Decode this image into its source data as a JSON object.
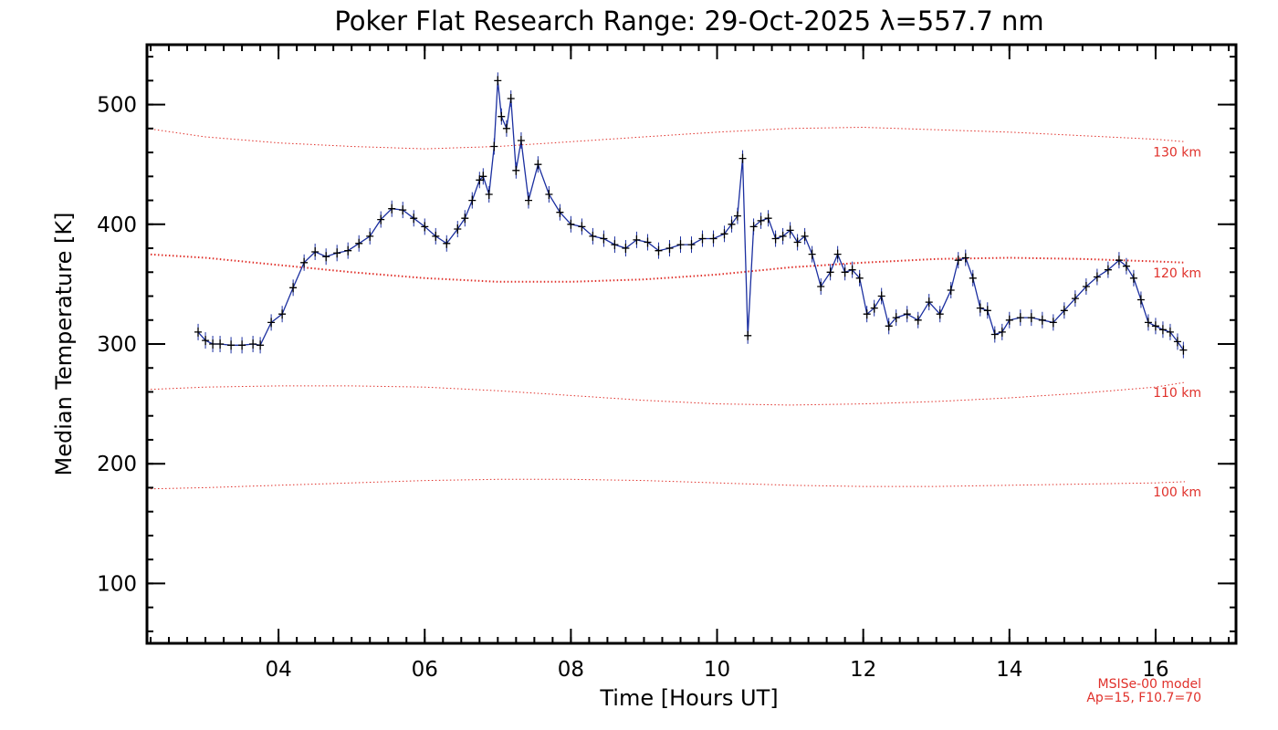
{
  "colors": {
    "series_line": "#1b2fa0",
    "series_points": "#000000",
    "reference_lines": "#e0302a"
  },
  "chart_data": {
    "type": "line",
    "title": "Poker Flat Research Range: 29-Oct-2025 λ=557.7 nm",
    "xlabel": "Time [Hours UT]",
    "ylabel": "Median Temperature [K]",
    "xlim": [
      2.2,
      17.1
    ],
    "ylim": [
      50,
      550
    ],
    "x_ticks": [
      4,
      6,
      8,
      10,
      12,
      14,
      16
    ],
    "x_tick_labels": [
      "04",
      "06",
      "08",
      "10",
      "12",
      "14",
      "16"
    ],
    "y_ticks": [
      100,
      200,
      300,
      400,
      500
    ],
    "y_tick_labels": [
      "100",
      "200",
      "300",
      "400",
      "500"
    ],
    "grid": false,
    "series": [
      {
        "x": [
          2.9,
          3.0,
          3.1,
          3.2,
          3.35,
          3.5,
          3.65,
          3.75,
          3.9,
          4.05,
          4.2,
          4.35,
          4.5,
          4.65,
          4.8,
          4.95,
          5.1,
          5.25,
          5.4,
          5.55,
          5.7,
          5.85,
          6.0,
          6.15,
          6.3,
          6.45,
          6.55,
          6.65,
          6.75,
          6.8,
          6.88,
          6.95,
          7.0,
          7.05,
          7.12,
          7.18,
          7.25,
          7.32,
          7.42,
          7.55,
          7.7,
          7.85,
          8.0,
          8.15,
          8.3,
          8.45,
          8.6,
          8.75,
          8.9,
          9.05,
          9.2,
          9.35,
          9.5,
          9.65,
          9.8,
          9.95,
          10.1,
          10.2,
          10.28,
          10.35,
          10.42,
          10.5,
          10.6,
          10.7,
          10.8,
          10.9,
          11.0,
          11.1,
          11.2,
          11.3,
          11.42,
          11.55,
          11.65,
          11.75,
          11.85,
          11.95,
          12.05,
          12.15,
          12.25,
          12.35,
          12.45,
          12.6,
          12.75,
          12.9,
          13.05,
          13.2,
          13.3,
          13.4,
          13.5,
          13.6,
          13.7,
          13.8,
          13.9,
          14.0,
          14.15,
          14.3,
          14.45,
          14.6,
          14.75,
          14.9,
          15.05,
          15.2,
          15.35,
          15.5,
          15.6,
          15.7,
          15.8,
          15.9,
          16.0,
          16.1,
          16.2,
          16.3,
          16.38
        ],
        "values": [
          310,
          303,
          300,
          300,
          299,
          299,
          300,
          299,
          318,
          325,
          347,
          368,
          377,
          373,
          376,
          378,
          384,
          390,
          404,
          413,
          412,
          405,
          398,
          390,
          384,
          396,
          405,
          420,
          437,
          440,
          425,
          465,
          520,
          490,
          480,
          505,
          445,
          470,
          420,
          450,
          425,
          410,
          400,
          398,
          390,
          388,
          383,
          380,
          387,
          385,
          378,
          380,
          383,
          383,
          388,
          388,
          392,
          400,
          407,
          455,
          307,
          398,
          403,
          405,
          388,
          390,
          395,
          385,
          390,
          375,
          348,
          360,
          375,
          360,
          362,
          355,
          325,
          330,
          340,
          315,
          322,
          325,
          320,
          335,
          325,
          345,
          370,
          372,
          355,
          330,
          328,
          308,
          310,
          320,
          322,
          322,
          320,
          318,
          328,
          338,
          348,
          356,
          362,
          370,
          365,
          355,
          337,
          318,
          315,
          312,
          310,
          302,
          295
        ]
      }
    ],
    "reference_lines": [
      {
        "label": "130 km",
        "x": [
          2.2,
          3.0,
          4.0,
          5.0,
          6.0,
          7.0,
          8.0,
          9.0,
          10.0,
          11.0,
          12.0,
          13.0,
          14.0,
          15.0,
          16.0,
          16.4
        ],
        "values": [
          480,
          473,
          468,
          465,
          463,
          465,
          469,
          473,
          477,
          480,
          481,
          479,
          477,
          474,
          471,
          469
        ]
      },
      {
        "label": "120 km",
        "x": [
          2.2,
          3.0,
          4.0,
          5.0,
          6.0,
          7.0,
          8.0,
          9.0,
          10.0,
          11.0,
          12.0,
          13.0,
          14.0,
          15.0,
          16.0,
          16.4
        ],
        "values": [
          375,
          372,
          366,
          360,
          355,
          352,
          352,
          354,
          358,
          364,
          368,
          371,
          372,
          371,
          369,
          368
        ]
      },
      {
        "label": "110 km",
        "x": [
          2.2,
          3.0,
          4.0,
          5.0,
          6.0,
          7.0,
          8.0,
          9.0,
          10.0,
          11.0,
          12.0,
          13.0,
          14.0,
          15.0,
          16.0,
          16.4
        ],
        "values": [
          262,
          264,
          265,
          265,
          264,
          261,
          257,
          253,
          250,
          249,
          250,
          252,
          255,
          259,
          264,
          268
        ]
      },
      {
        "label": "100 km",
        "x": [
          2.2,
          3.0,
          4.0,
          5.0,
          6.0,
          7.0,
          8.0,
          9.0,
          10.0,
          11.0,
          12.0,
          13.0,
          14.0,
          15.0,
          16.0,
          16.4
        ],
        "values": [
          179,
          180,
          182,
          184,
          186,
          187,
          187,
          186,
          184,
          182,
          181,
          181,
          182,
          183,
          184,
          185
        ]
      }
    ],
    "annotations": [
      "MSISe-00 model",
      "Ap=15, F10.7=70"
    ]
  }
}
